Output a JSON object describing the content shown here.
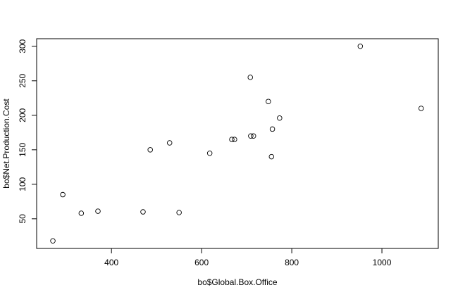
{
  "chart_data": {
    "type": "scatter",
    "xlabel": "bo$Global.Box.Office",
    "ylabel": "bo$Net.Production.Cost",
    "x": [
      270,
      292,
      333,
      370,
      470,
      486,
      529,
      550,
      618,
      667,
      673,
      708,
      709,
      715,
      748,
      755,
      757,
      773,
      952,
      1087
    ],
    "values": [
      18,
      85,
      58,
      61,
      60,
      150,
      160,
      59,
      145,
      165,
      165,
      255,
      170,
      170,
      220,
      140,
      180,
      196,
      300,
      210
    ],
    "color": "#000000",
    "xlim": [
      234,
      1125
    ],
    "ylim": [
      7,
      311
    ],
    "xticks": [
      400,
      600,
      800,
      1000
    ],
    "yticks": [
      50,
      100,
      150,
      200,
      250,
      300
    ]
  }
}
